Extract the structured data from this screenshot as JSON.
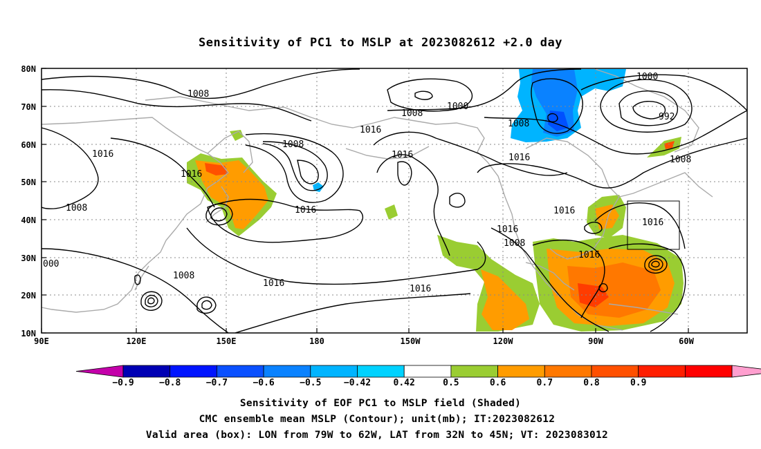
{
  "title": "Sensitivity of PC1 to MSLP at 2023082612 +2.0 day",
  "map": {
    "lon_ticks": [
      "90E",
      "120E",
      "150E",
      "180",
      "150W",
      "120W",
      "90W",
      "60W"
    ],
    "lat_ticks": [
      "80N",
      "70N",
      "60N",
      "50N",
      "40N",
      "30N",
      "20N",
      "10N"
    ],
    "contour_labels": [
      "1008",
      "1008",
      "1000",
      "1000",
      "1008",
      "992",
      "1016",
      "1008",
      "1016",
      "1016",
      "1008",
      "1016",
      "1016",
      "1016",
      "1016",
      "1016",
      "1016",
      "1008",
      "1016",
      "1008",
      "000",
      "1008",
      "1016",
      "1016",
      "1008"
    ],
    "valid_box": {
      "lon_from": "79W",
      "lon_to": "62W",
      "lat_from": "32N",
      "lat_to": "45N"
    }
  },
  "colorbar": {
    "labels": [
      "-0.9",
      "-0.8",
      "-0.7",
      "-0.6",
      "-0.5",
      "-0.42",
      "0.42",
      "0.5",
      "0.6",
      "0.7",
      "0.8",
      "0.9"
    ],
    "colors": [
      "#c400aa",
      "#0000b4",
      "#0014ff",
      "#0a50ff",
      "#0a82ff",
      "#00b4ff",
      "#00d2ff",
      "#ffffff",
      "#9acd32",
      "#ff9c00",
      "#ff7800",
      "#ff5000",
      "#ff1e00",
      "#ff0000",
      "#ff9fcf"
    ]
  },
  "colors": {
    "coast": "#aaaaaa",
    "contour": "#000000",
    "grid": "#888888",
    "green": "#9acd32",
    "orange_light": "#ff9c00",
    "orange": "#ff7800",
    "red": "#ff3c00",
    "blue_light": "#00b4ff",
    "blue": "#0a82ff",
    "blue_dark": "#0050ff"
  },
  "footer": [
    "Sensitivity of EOF PC1 to MSLP field (Shaded)",
    "CMC ensemble mean MSLP (Contour); unit(mb); IT:2023082612",
    "Valid area (box): LON from 79W to 62W, LAT from 32N to 45N; VT: 2023083012"
  ]
}
